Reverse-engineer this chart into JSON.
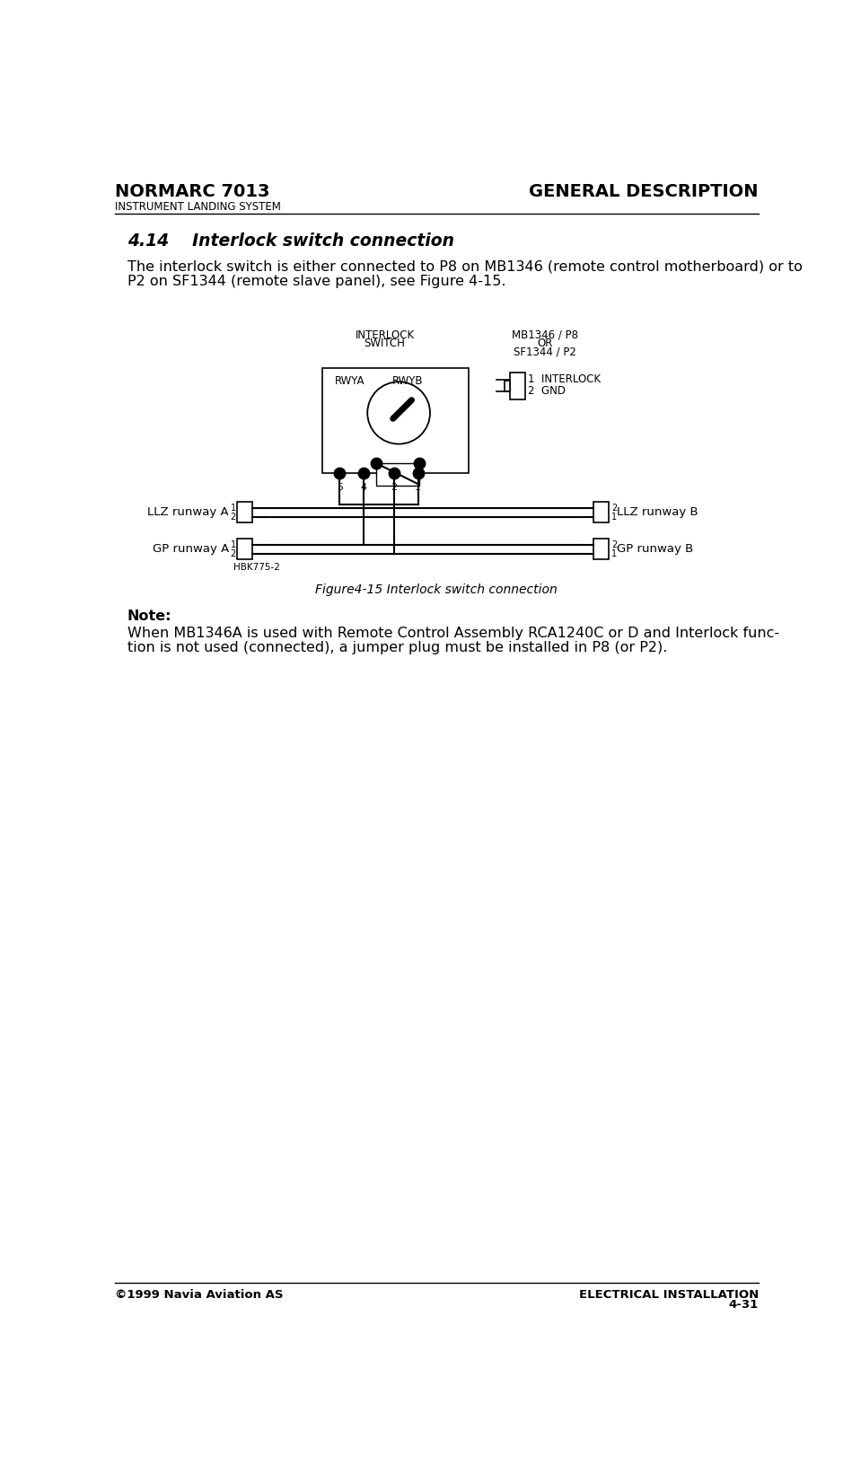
{
  "title_left": "NORMARC 7013",
  "title_right": "GENERAL DESCRIPTION",
  "subtitle_left": "INSTRUMENT LANDING SYSTEM",
  "footer_left": "©1999 Navia Aviation AS",
  "footer_right": "ELECTRICAL INSTALLATION",
  "footer_page": "4-31",
  "section_title": "4.14    Interlock switch connection",
  "body_text_1": "The interlock switch is either connected to P8 on MB1346 (remote control motherboard) or to",
  "body_text_2": "P2 on SF1344 (remote slave panel), see Figure 4-15.",
  "label_interlock_switch_1": "INTERLOCK",
  "label_interlock_switch_2": "SWITCH",
  "label_mb_1": "MB1346 / P8",
  "label_mb_2": "OR",
  "label_mb_3": "SF1344 / P2",
  "label_rwya": "RWYA",
  "label_rwyb": "RWYB",
  "label_pin1": "1",
  "label_pin2": "2",
  "label_pin4": "4",
  "label_pin5": "5",
  "label_interlock": "INTERLOCK",
  "label_gnd": "GND",
  "label_llz_a": "LLZ runway A",
  "label_llz_b": "LLZ runway B",
  "label_gp_a": "GP runway A",
  "label_gp_b": "GP runway B",
  "label_hbk": "HBK775-2",
  "figure_caption": "Figure4-15 Interlock switch connection",
  "note_title": "Note:",
  "note_text_1": "When MB1346A is used with Remote Control Assembly RCA1240C or D and Interlock func-",
  "note_text_2": "tion is not used (connected), a jumper plug must be installed in P8 (or P2).",
  "bg_color": "#ffffff",
  "text_color": "#000000"
}
